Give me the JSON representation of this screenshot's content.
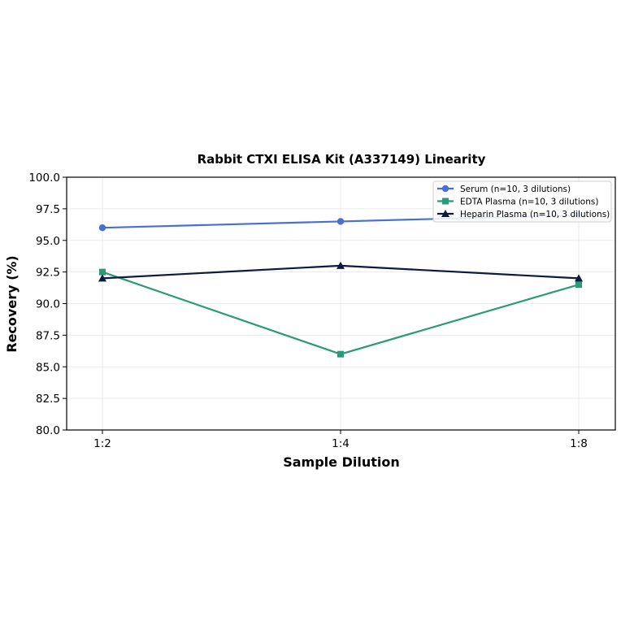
{
  "chart_data": {
    "type": "line",
    "title": "Rabbit CTXI ELISA Kit (A337149) Linearity",
    "xlabel": "Sample Dilution",
    "ylabel": "Recovery (%)",
    "categories": [
      "1:2",
      "1:4",
      "1:8"
    ],
    "ylim": [
      80.0,
      100.0
    ],
    "yticks": [
      "80.0",
      "82.5",
      "85.0",
      "87.5",
      "90.0",
      "92.5",
      "95.0",
      "97.5",
      "100.0"
    ],
    "grid": true,
    "legend_position": "top-right",
    "series": [
      {
        "name": "Serum (n=10, 3 dilutions)",
        "values": [
          96.0,
          96.5,
          97.0
        ],
        "color": "#4a6fd4",
        "marker": "circle"
      },
      {
        "name": "EDTA Plasma (n=10, 3 dilutions)",
        "values": [
          92.5,
          86.0,
          91.5
        ],
        "color": "#2a9a78",
        "marker": "square"
      },
      {
        "name": "Heparin Plasma (n=10, 3 dilutions)",
        "values": [
          92.0,
          93.0,
          92.0
        ],
        "color": "#0d1a3d",
        "marker": "triangle"
      }
    ]
  }
}
